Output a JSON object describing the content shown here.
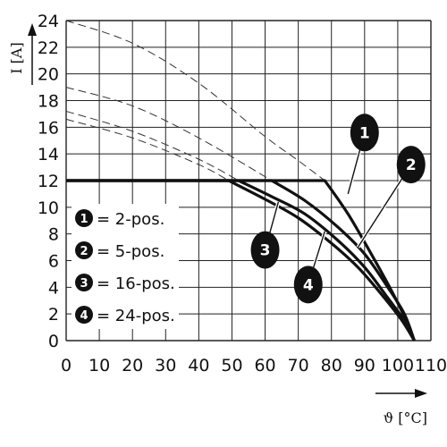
{
  "chart_data": {
    "type": "line",
    "xlabel": "ϑ [°C]",
    "ylabel": "I [A]",
    "xlim": [
      0,
      110
    ],
    "ylim": [
      0,
      24
    ],
    "x_ticks": [
      0,
      10,
      20,
      30,
      40,
      50,
      60,
      70,
      80,
      90,
      100,
      110
    ],
    "y_ticks": [
      0,
      2,
      4,
      6,
      8,
      10,
      12,
      14,
      16,
      18,
      20,
      22,
      24
    ],
    "grid": true,
    "series": [
      {
        "name": "2-pos.",
        "marker": "1",
        "points": [
          [
            0,
            12
          ],
          [
            78,
            12
          ],
          [
            85,
            9.5
          ],
          [
            92,
            6.5
          ],
          [
            98,
            3.8
          ],
          [
            102,
            1.8
          ],
          [
            105,
            0
          ]
        ],
        "dashed_extension": [
          [
            0,
            24
          ],
          [
            20,
            22.3
          ],
          [
            40,
            19.3
          ],
          [
            60,
            15.3
          ],
          [
            70,
            13.5
          ],
          [
            78,
            12
          ]
        ]
      },
      {
        "name": "5-pos.",
        "marker": "2",
        "points": [
          [
            0,
            12
          ],
          [
            62,
            12
          ],
          [
            72,
            10.5
          ],
          [
            82,
            8.5
          ],
          [
            90,
            6.5
          ],
          [
            97,
            4
          ],
          [
            102,
            2
          ],
          [
            105,
            0
          ]
        ],
        "dashed_extension": [
          [
            0,
            19
          ],
          [
            20,
            17.6
          ],
          [
            40,
            15.2
          ],
          [
            62,
            12
          ]
        ]
      },
      {
        "name": "16-pos.",
        "marker": "3",
        "points": [
          [
            0,
            12
          ],
          [
            52,
            12
          ],
          [
            62,
            10.8
          ],
          [
            72,
            9.5
          ],
          [
            82,
            7.5
          ],
          [
            90,
            5.5
          ],
          [
            97,
            3.2
          ],
          [
            102,
            1.5
          ],
          [
            105,
            0
          ]
        ],
        "dashed_extension": [
          [
            0,
            17.2
          ],
          [
            20,
            15.7
          ],
          [
            40,
            13.6
          ],
          [
            52,
            12
          ]
        ]
      },
      {
        "name": "24-pos.",
        "marker": "4",
        "points": [
          [
            0,
            12
          ],
          [
            49,
            12
          ],
          [
            60,
            10.6
          ],
          [
            70,
            9.2
          ],
          [
            80,
            7.3
          ],
          [
            88,
            5.5
          ],
          [
            95,
            3.5
          ],
          [
            101,
            1.6
          ],
          [
            105,
            0
          ]
        ],
        "dashed_extension": [
          [
            0,
            16.6
          ],
          [
            20,
            15.2
          ],
          [
            40,
            13.2
          ],
          [
            49,
            12
          ]
        ]
      }
    ],
    "legend": {
      "placement": "left-middle",
      "entries": [
        {
          "marker": "1",
          "label": "= 2-pos."
        },
        {
          "marker": "2",
          "label": "= 5-pos."
        },
        {
          "marker": "3",
          "label": "= 16-pos."
        },
        {
          "marker": "4",
          "label": "= 24-pos."
        }
      ]
    },
    "callouts": [
      {
        "marker": "1",
        "at": [
          85,
          11
        ],
        "bubble": [
          90,
          15.6
        ]
      },
      {
        "marker": "2",
        "at": [
          88,
          7
        ],
        "bubble": [
          104,
          13.2
        ]
      },
      {
        "marker": "3",
        "at": [
          64,
          10.4
        ],
        "bubble": [
          60,
          6.8
        ]
      },
      {
        "marker": "4",
        "at": [
          78,
          8.2
        ],
        "bubble": [
          73,
          4.2
        ]
      }
    ]
  }
}
